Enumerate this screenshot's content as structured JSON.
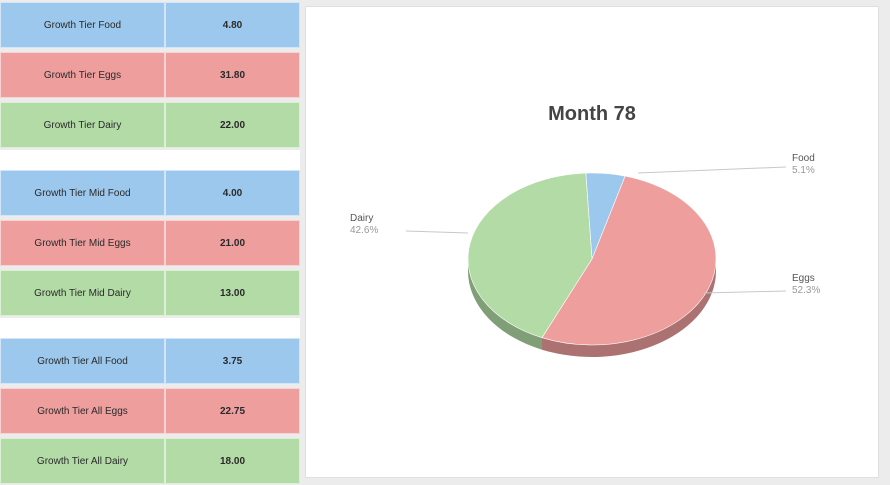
{
  "table": {
    "groups": [
      {
        "rows": [
          {
            "label": "Growth Tier Food",
            "value": "4.80",
            "color": "blue"
          },
          {
            "label": "Growth Tier Eggs",
            "value": "31.80",
            "color": "red"
          },
          {
            "label": "Growth Tier Dairy",
            "value": "22.00",
            "color": "green"
          }
        ]
      },
      {
        "rows": [
          {
            "label": "Growth Tier Mid Food",
            "value": "4.00",
            "color": "blue"
          },
          {
            "label": "Growth Tier Mid Eggs",
            "value": "21.00",
            "color": "red"
          },
          {
            "label": "Growth Tier Mid Dairy",
            "value": "13.00",
            "color": "green"
          }
        ]
      },
      {
        "rows": [
          {
            "label": "Growth Tier All Food",
            "value": "3.75",
            "color": "blue"
          },
          {
            "label": "Growth Tier All Eggs",
            "value": "22.75",
            "color": "red"
          },
          {
            "label": "Growth Tier All Dairy",
            "value": "18.00",
            "color": "green"
          }
        ]
      }
    ]
  },
  "colors": {
    "blue": "#9cc8ee",
    "red": "#ef9e9e",
    "green": "#b2dba6"
  },
  "chart_data": {
    "type": "pie",
    "title": "Month 78",
    "slices": [
      {
        "name": "Food",
        "value": 5.1,
        "label_text": "Food",
        "pct_text": "5.1%",
        "color": "#9cc8ee"
      },
      {
        "name": "Eggs",
        "value": 52.3,
        "label_text": "Eggs",
        "pct_text": "52.3%",
        "color": "#ef9e9e"
      },
      {
        "name": "Dairy",
        "value": 42.6,
        "label_text": "Dairy",
        "pct_text": "42.6%",
        "color": "#b2dba6"
      }
    ],
    "three_d": true,
    "legend": "none"
  }
}
